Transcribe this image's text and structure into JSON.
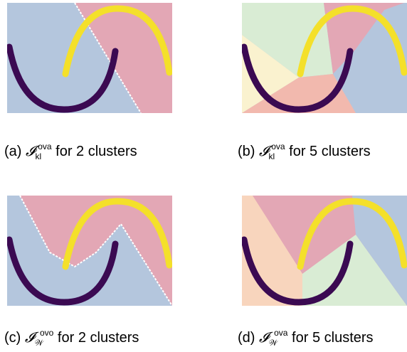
{
  "figure": {
    "panels": [
      {
        "label": "(a)",
        "symbol": "𝓘",
        "sub": "kl",
        "sup": "ova",
        "tail": "for 2 clusters",
        "n_clusters": 2
      },
      {
        "label": "(b)",
        "symbol": "𝓘",
        "sub": "kl",
        "sup": "ova",
        "tail": "for 5 clusters",
        "n_clusters": 5
      },
      {
        "label": "(c)",
        "symbol": "𝓘",
        "sub": "𝒲",
        "sup": "ovo",
        "tail": "for 2 clusters",
        "n_clusters": 2
      },
      {
        "label": "(d)",
        "symbol": "𝓘",
        "sub": "𝒲",
        "sup": "ova",
        "tail": "for 5 clusters",
        "n_clusters": 5
      }
    ],
    "colors": {
      "moon_lower": "#3b0a52",
      "moon_upper": "#f4e02a",
      "region_blue": "#b4c6dd",
      "region_pink": "#e3a7b5",
      "region_green": "#d9ecd4",
      "region_cream": "#faf2cf",
      "region_salmon": "#f2b9ae",
      "region_orange": "#f8d5bd"
    }
  }
}
